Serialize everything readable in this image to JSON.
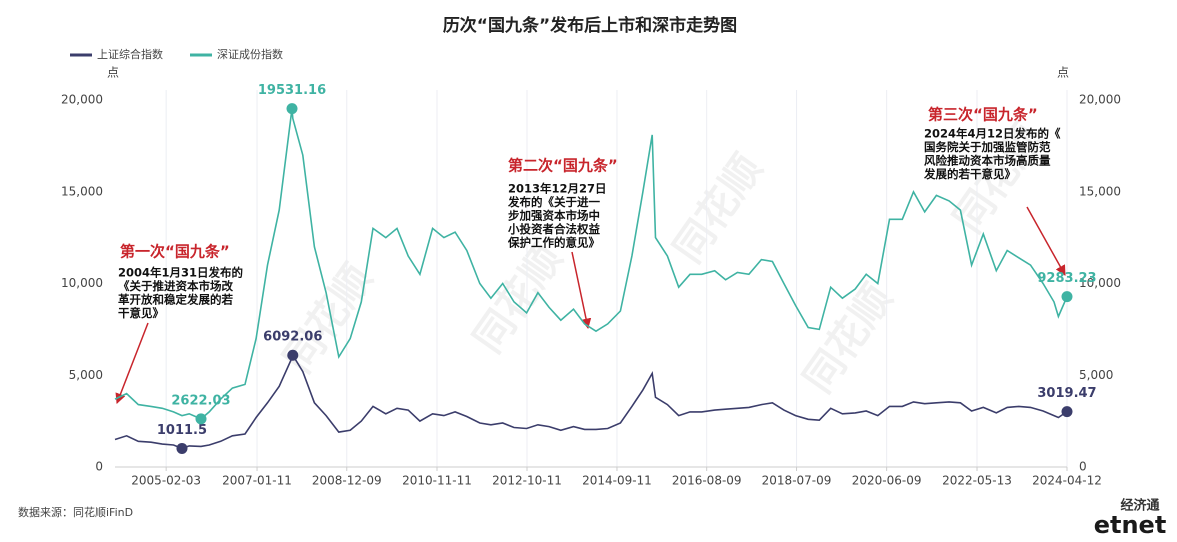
{
  "chart_data": {
    "type": "line",
    "title": "历次“国九条”发布后上市和深市走势图",
    "x": [
      "2004-01-02",
      "2004-04-01",
      "2004-07-01",
      "2004-10-08",
      "2005-01-04",
      "2005-04-01",
      "2005-06-06",
      "2005-08-01",
      "2005-11-01",
      "2006-01-04",
      "2006-04-03",
      "2006-07-03",
      "2006-10-09",
      "2007-01-04",
      "2007-04-02",
      "2007-07-02",
      "2007-10-10",
      "2007-10-16",
      "2008-01-02",
      "2008-04-01",
      "2008-07-01",
      "2008-10-08",
      "2009-01-05",
      "2009-04-01",
      "2009-07-01",
      "2009-10-09",
      "2010-01-04",
      "2010-04-01",
      "2010-07-01",
      "2010-10-08",
      "2011-01-04",
      "2011-04-01",
      "2011-07-01",
      "2011-10-10",
      "2012-01-04",
      "2012-04-05",
      "2012-07-02",
      "2012-10-08",
      "2013-01-04",
      "2013-04-01",
      "2013-07-01",
      "2013-10-08",
      "2014-01-02",
      "2014-04-01",
      "2014-07-01",
      "2014-10-08",
      "2015-01-05",
      "2015-04-01",
      "2015-06-12",
      "2015-07-08",
      "2015-10-08",
      "2016-01-04",
      "2016-04-01",
      "2016-07-01",
      "2016-10-10",
      "2017-01-03",
      "2017-04-05",
      "2017-07-03",
      "2017-10-09",
      "2018-01-02",
      "2018-04-02",
      "2018-07-02",
      "2018-10-08",
      "2019-01-02",
      "2019-04-01",
      "2019-07-01",
      "2019-10-08",
      "2020-01-02",
      "2020-04-01",
      "2020-07-01",
      "2020-10-09",
      "2021-01-04",
      "2021-04-01",
      "2021-07-01",
      "2021-10-08",
      "2022-01-04",
      "2022-04-01",
      "2022-07-01",
      "2022-10-10",
      "2023-01-03",
      "2023-04-03",
      "2023-07-03",
      "2023-10-09",
      "2024-01-02",
      "2024-02-05",
      "2024-04-12"
    ],
    "series": [
      {
        "name": "上证综合指数",
        "color": "#3b3d6b",
        "axis": "y",
        "values": [
          1500,
          1700,
          1400,
          1350,
          1250,
          1200,
          1011.5,
          1150,
          1120,
          1200,
          1400,
          1700,
          1800,
          2700,
          3500,
          4400,
          5950,
          6092.06,
          5200,
          3500,
          2800,
          1900,
          2000,
          2500,
          3300,
          2900,
          3200,
          3100,
          2500,
          2900,
          2800,
          3000,
          2750,
          2400,
          2300,
          2400,
          2150,
          2100,
          2300,
          2200,
          2000,
          2200,
          2050,
          2050,
          2100,
          2400,
          3300,
          4200,
          5100,
          3800,
          3400,
          2800,
          3000,
          3000,
          3100,
          3150,
          3200,
          3250,
          3400,
          3500,
          3100,
          2800,
          2600,
          2550,
          3200,
          2900,
          2950,
          3050,
          2800,
          3300,
          3300,
          3550,
          3450,
          3500,
          3550,
          3500,
          3050,
          3250,
          2950,
          3250,
          3300,
          3250,
          3050,
          2800,
          2700,
          3019.47
        ],
        "value_labels": [
          null,
          null,
          null,
          null,
          null,
          null,
          "1011.5",
          null,
          null,
          null,
          null,
          null,
          null,
          null,
          null,
          null,
          null,
          "6092.06",
          null,
          null,
          null,
          null,
          null,
          null,
          null,
          null,
          null,
          null,
          null,
          null,
          null,
          null,
          null,
          null,
          null,
          null,
          null,
          null,
          null,
          null,
          null,
          null,
          null,
          null,
          null,
          null,
          null,
          null,
          null,
          null,
          null,
          null,
          null,
          null,
          null,
          null,
          null,
          null,
          null,
          null,
          null,
          null,
          null,
          null,
          null,
          null,
          null,
          null,
          null,
          null,
          null,
          null,
          null,
          null,
          null,
          null,
          null,
          null,
          null,
          null,
          null,
          null,
          null,
          null,
          null,
          "3019.47"
        ]
      },
      {
        "name": "深证成份指数",
        "color": "#3fb3a3",
        "axis": "y2",
        "values": [
          3700,
          4000,
          3400,
          3300,
          3200,
          3000,
          2800,
          2900,
          2622.03,
          3000,
          3700,
          4300,
          4500,
          7000,
          11000,
          14000,
          19531.16,
          19000,
          17000,
          12000,
          9500,
          6000,
          7000,
          9000,
          13000,
          12500,
          13000,
          11500,
          10500,
          13000,
          12500,
          12800,
          11800,
          10000,
          9200,
          10000,
          9000,
          8400,
          9500,
          8700,
          8000,
          8600,
          7800,
          7400,
          7800,
          8500,
          11500,
          15000,
          18100,
          12500,
          11500,
          9800,
          10500,
          10500,
          10700,
          10200,
          10600,
          10500,
          11300,
          11200,
          10000,
          8800,
          7600,
          7500,
          9800,
          9200,
          9700,
          10500,
          10000,
          13500,
          13500,
          15000,
          13900,
          14800,
          14500,
          14000,
          11000,
          12700,
          10700,
          11800,
          11400,
          11000,
          10000,
          9000,
          8200,
          9283.23
        ],
        "value_labels": [
          null,
          null,
          null,
          null,
          null,
          null,
          null,
          null,
          "2622.03",
          null,
          null,
          null,
          null,
          null,
          null,
          null,
          "19531.16",
          null,
          null,
          null,
          null,
          null,
          null,
          null,
          null,
          null,
          null,
          null,
          null,
          null,
          null,
          null,
          null,
          null,
          null,
          null,
          null,
          null,
          null,
          null,
          null,
          null,
          null,
          null,
          null,
          null,
          null,
          null,
          null,
          null,
          null,
          null,
          null,
          null,
          null,
          null,
          null,
          null,
          null,
          null,
          null,
          null,
          null,
          null,
          null,
          null,
          null,
          null,
          null,
          null,
          null,
          null,
          null,
          null,
          null,
          null,
          null,
          null,
          null,
          null,
          null,
          null,
          null,
          null,
          null,
          "9283.23"
        ]
      }
    ],
    "xlim": [
      "2004-01-02",
      "2024-04-12"
    ],
    "xticks": [
      "2005-02-03",
      "2007-01-11",
      "2008-12-09",
      "2010-11-11",
      "2012-10-11",
      "2014-09-11",
      "2016-08-09",
      "2018-07-09",
      "2020-06-09",
      "2022-05-13",
      "2024-04-12"
    ],
    "ylim": [
      0,
      20000
    ],
    "yticks": [
      0,
      {
        "value": 5000,
        "label": "5,000"
      },
      {
        "value": 10000,
        "label": "10,000"
      },
      {
        "value": 15000,
        "label": "15,000"
      },
      {
        "value": 20000,
        "label": "20,000"
      }
    ],
    "y2lim": [
      0,
      20000
    ],
    "y2ticks": [
      0,
      {
        "value": 5000,
        "label": "5,000"
      },
      {
        "value": 10000,
        "label": "10,000"
      },
      {
        "value": 15000,
        "label": "15,000"
      },
      {
        "value": 20000,
        "label": "20,000"
      }
    ],
    "y_label": "点",
    "y2_label": "点",
    "grid": "x",
    "annotations": [
      {
        "title": "第一次“国九条”",
        "lines": [
          "2004年1月31日发布的",
          "《关于推进资本市场改",
          "革开放和稳定发展的若",
          "干意见》"
        ]
      },
      {
        "title": "第二次“国九条”",
        "lines": [
          "2013年12月27日",
          "发布的《关于进一",
          "步加强资本市场中",
          "小投资者合法权益",
          "保护工作的意见》"
        ]
      },
      {
        "title": "第三次“国九条”",
        "lines": [
          "2024年4月12日发布的《",
          "国务院关于加强监管防范",
          "风险推动资本市场高质量",
          "发展的若干意见》"
        ]
      }
    ],
    "source": "数据来源：同花顺iFinD",
    "watermark": "同花顺",
    "logo_top": "经济通",
    "logo": "etnet"
  }
}
